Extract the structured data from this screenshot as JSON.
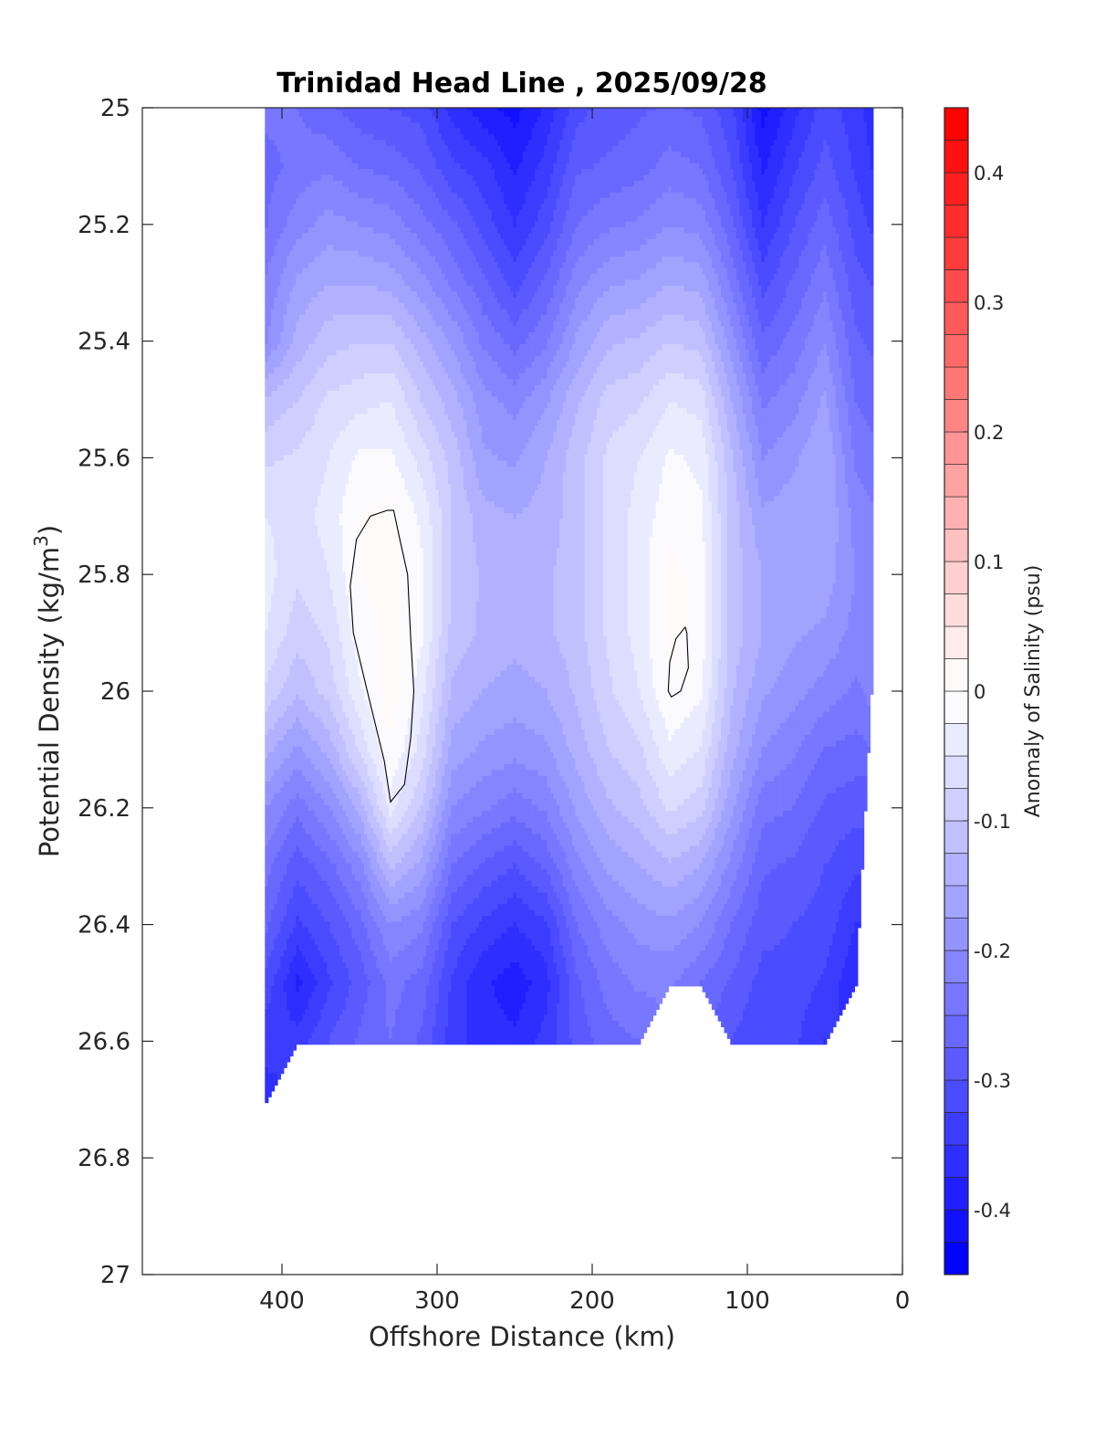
{
  "chart_data": {
    "type": "heatmap",
    "subtype": "filled-contour-section",
    "title": "Trinidad Head Line , 2025/09/28",
    "xlabel": "Offshore Distance (km)",
    "ylabel_main": "Potential Density (kg/m",
    "ylabel_sup": "3",
    "ylabel_end": ")",
    "x_reversed": true,
    "y_reversed": true,
    "xlim": [
      490,
      0
    ],
    "ylim": [
      25,
      27
    ],
    "grid": false,
    "x_ticks": [
      400,
      300,
      200,
      100,
      0
    ],
    "y_ticks": [
      25,
      25.2,
      25.4,
      25.6,
      25.8,
      26,
      26.2,
      26.4,
      26.6,
      26.8,
      27
    ],
    "y_tick_labels": [
      "25",
      "25.2",
      "25.4",
      "25.6",
      "25.8",
      "26",
      "26.2",
      "26.4",
      "26.6",
      "26.8",
      "27"
    ],
    "colorbar": {
      "label": "Anomaly of Salinity (psu)",
      "range": [
        -0.45,
        0.45
      ],
      "step": 0.025,
      "ticks": [
        0.4,
        0.3,
        0.2,
        0.1,
        0,
        -0.1,
        -0.2,
        -0.3,
        -0.4
      ],
      "tick_labels": [
        "0.4",
        "0.3",
        "0.2",
        "0.1",
        "0",
        "-0.1",
        "-0.2",
        "-0.3",
        "-0.4"
      ],
      "positive_color": "#ff0000",
      "negative_color": "#0000ff",
      "zero_color": "#ffffff"
    },
    "station_x": [
      410,
      390,
      370,
      350,
      330,
      310,
      290,
      270,
      250,
      230,
      210,
      190,
      170,
      150,
      130,
      110,
      90,
      70,
      50,
      30,
      20
    ],
    "sigma_levels": [
      25.0,
      25.1,
      25.2,
      25.3,
      25.4,
      25.5,
      25.6,
      25.7,
      25.8,
      25.9,
      26.0,
      26.1,
      26.2,
      26.3,
      26.4,
      26.5,
      26.6,
      26.7
    ],
    "deepest_level": [
      26.7,
      26.6,
      26.6,
      26.6,
      26.6,
      26.6,
      26.6,
      26.6,
      26.6,
      26.6,
      26.6,
      26.6,
      26.6,
      26.5,
      26.5,
      26.6,
      26.6,
      26.6,
      26.6,
      26.5,
      26.0
    ],
    "anomaly_values": [
      [
        -0.24,
        -0.26,
        -0.25,
        -0.22,
        -0.2,
        -0.12,
        -0.08,
        -0.05,
        -0.04,
        -0.05,
        -0.08,
        -0.14,
        -0.2,
        -0.24,
        -0.27,
        -0.31,
        -0.34,
        -0.36
      ],
      [
        -0.25,
        -0.24,
        -0.21,
        -0.17,
        -0.14,
        -0.1,
        -0.07,
        -0.06,
        -0.07,
        -0.09,
        -0.12,
        -0.18,
        -0.24,
        -0.29,
        -0.33,
        -0.38,
        -0.34,
        null
      ],
      [
        -0.27,
        -0.23,
        -0.19,
        -0.15,
        -0.11,
        -0.07,
        -0.05,
        -0.04,
        -0.05,
        -0.07,
        -0.09,
        -0.14,
        -0.2,
        -0.26,
        -0.3,
        -0.33,
        -0.3,
        null
      ],
      [
        -0.29,
        -0.25,
        -0.2,
        -0.15,
        -0.1,
        -0.06,
        -0.02,
        0.0,
        0.0,
        -0.01,
        -0.03,
        -0.07,
        -0.14,
        -0.21,
        -0.26,
        -0.29,
        -0.27,
        null
      ],
      [
        -0.3,
        -0.26,
        -0.21,
        -0.16,
        -0.1,
        -0.05,
        -0.02,
        0.01,
        0.01,
        0.01,
        0.02,
        0.0,
        -0.04,
        -0.12,
        -0.2,
        -0.24,
        -0.25,
        null
      ],
      [
        -0.31,
        -0.28,
        -0.24,
        -0.19,
        -0.14,
        -0.1,
        -0.06,
        -0.03,
        -0.02,
        -0.02,
        -0.04,
        -0.06,
        -0.1,
        -0.16,
        -0.22,
        -0.26,
        -0.28,
        null
      ],
      [
        -0.36,
        -0.32,
        -0.27,
        -0.23,
        -0.18,
        -0.14,
        -0.11,
        -0.1,
        -0.1,
        -0.11,
        -0.13,
        -0.16,
        -0.2,
        -0.25,
        -0.3,
        -0.33,
        -0.34,
        null
      ],
      [
        -0.39,
        -0.34,
        -0.31,
        -0.27,
        -0.23,
        -0.19,
        -0.17,
        -0.14,
        -0.13,
        -0.13,
        -0.15,
        -0.18,
        -0.22,
        -0.28,
        -0.33,
        -0.37,
        -0.36,
        null
      ],
      [
        -0.41,
        -0.38,
        -0.35,
        -0.31,
        -0.26,
        -0.21,
        -0.18,
        -0.15,
        -0.14,
        -0.14,
        -0.16,
        -0.19,
        -0.24,
        -0.3,
        -0.35,
        -0.39,
        -0.37,
        null
      ],
      [
        -0.37,
        -0.34,
        -0.31,
        -0.27,
        -0.23,
        -0.18,
        -0.15,
        -0.14,
        -0.13,
        -0.13,
        -0.15,
        -0.18,
        -0.22,
        -0.27,
        -0.33,
        -0.36,
        -0.34,
        null
      ],
      [
        -0.31,
        -0.28,
        -0.25,
        -0.21,
        -0.17,
        -0.13,
        -0.11,
        -0.11,
        -0.11,
        -0.11,
        -0.12,
        -0.14,
        -0.17,
        -0.21,
        -0.25,
        -0.28,
        -0.29,
        null
      ],
      [
        -0.29,
        -0.27,
        -0.23,
        -0.18,
        -0.13,
        -0.09,
        -0.07,
        -0.07,
        -0.07,
        -0.07,
        -0.08,
        -0.1,
        -0.13,
        -0.17,
        -0.21,
        -0.24,
        -0.26,
        null
      ],
      [
        -0.28,
        -0.26,
        -0.22,
        -0.17,
        -0.12,
        -0.08,
        -0.05,
        -0.04,
        -0.04,
        -0.04,
        -0.05,
        -0.08,
        -0.11,
        -0.15,
        -0.19,
        -0.22,
        -0.25,
        null
      ],
      [
        -0.27,
        -0.24,
        -0.2,
        -0.15,
        -0.1,
        -0.05,
        -0.02,
        -0.01,
        0.01,
        0.01,
        0.0,
        -0.03,
        -0.07,
        -0.13,
        -0.18,
        -0.22,
        null,
        null
      ],
      [
        -0.28,
        -0.25,
        -0.21,
        -0.16,
        -0.11,
        -0.06,
        -0.03,
        -0.02,
        -0.01,
        -0.01,
        -0.02,
        -0.05,
        -0.09,
        -0.15,
        -0.2,
        -0.25,
        null,
        null
      ],
      [
        -0.32,
        -0.3,
        -0.27,
        -0.23,
        -0.19,
        -0.15,
        -0.12,
        -0.11,
        -0.11,
        -0.11,
        -0.12,
        -0.14,
        -0.17,
        -0.21,
        -0.25,
        -0.28,
        -0.3,
        null
      ],
      [
        -0.41,
        -0.38,
        -0.35,
        -0.31,
        -0.27,
        -0.23,
        -0.2,
        -0.17,
        -0.15,
        -0.15,
        -0.17,
        -0.2,
        -0.24,
        -0.27,
        -0.29,
        -0.31,
        -0.32,
        null
      ],
      [
        -0.36,
        -0.33,
        -0.3,
        -0.27,
        -0.24,
        -0.21,
        -0.18,
        -0.16,
        -0.16,
        -0.17,
        -0.19,
        -0.22,
        -0.25,
        -0.28,
        -0.3,
        -0.31,
        -0.32,
        null
      ],
      [
        -0.31,
        -0.29,
        -0.26,
        -0.23,
        -0.2,
        -0.17,
        -0.15,
        -0.15,
        -0.16,
        -0.18,
        -0.21,
        -0.25,
        -0.28,
        -0.3,
        -0.31,
        -0.33,
        -0.35,
        null
      ],
      [
        -0.34,
        -0.33,
        -0.31,
        -0.29,
        -0.27,
        -0.25,
        -0.23,
        -0.21,
        -0.2,
        -0.21,
        -0.23,
        -0.26,
        -0.29,
        -0.32,
        -0.35,
        -0.37,
        null,
        null
      ],
      [
        -0.36,
        -0.35,
        -0.33,
        -0.3,
        -0.28,
        -0.26,
        -0.24,
        -0.22,
        -0.21,
        -0.21,
        -0.22,
        null,
        null,
        null,
        null,
        null,
        null,
        null
      ]
    ],
    "zero_contour_lines": [
      [
        [
          332,
          25.69
        ],
        [
          343,
          25.7
        ],
        [
          352,
          25.74
        ],
        [
          356,
          25.82
        ],
        [
          354,
          25.9
        ],
        [
          345,
          26.0
        ],
        [
          334,
          26.12
        ],
        [
          330,
          26.19
        ],
        [
          321,
          26.16
        ],
        [
          317,
          26.08
        ],
        [
          315,
          26.0
        ],
        [
          317,
          25.91
        ],
        [
          319,
          25.8
        ],
        [
          324,
          25.74
        ],
        [
          328,
          25.69
        ],
        [
          332,
          25.69
        ]
      ],
      [
        [
          140,
          25.89
        ],
        [
          146,
          25.91
        ],
        [
          150,
          25.95
        ],
        [
          151,
          26.0
        ],
        [
          149,
          26.01
        ],
        [
          143,
          26.0
        ],
        [
          138,
          25.96
        ],
        [
          139,
          25.9
        ],
        [
          140,
          25.89
        ]
      ]
    ]
  }
}
